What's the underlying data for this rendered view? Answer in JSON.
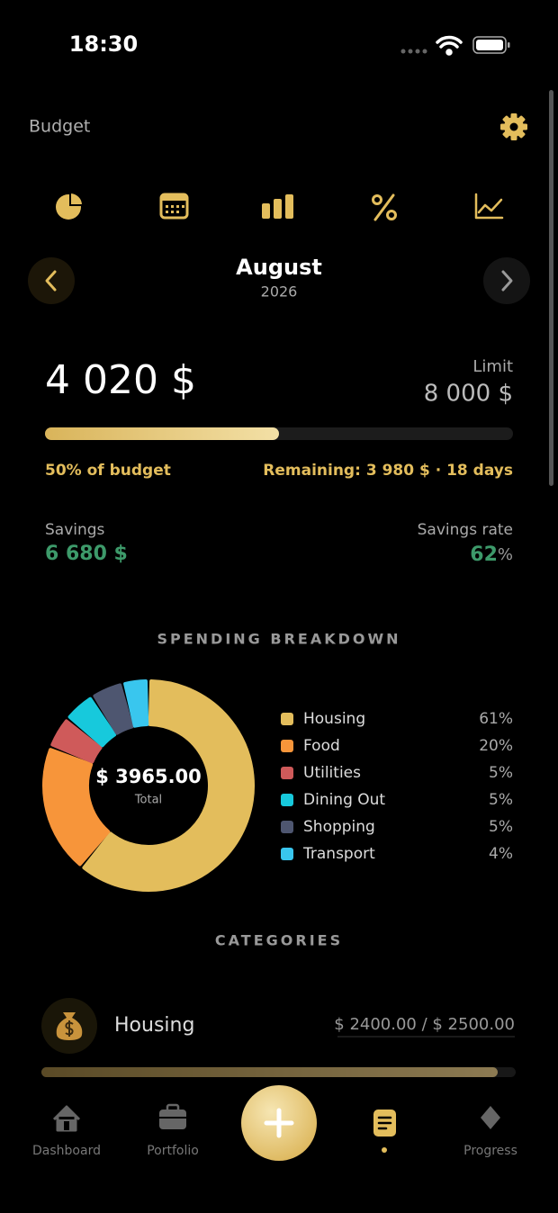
{
  "status_bar": {
    "time": "18:30"
  },
  "header": {
    "title": "Budget"
  },
  "period": {
    "month": "August",
    "year": "2026"
  },
  "budget": {
    "spent": "4 020 $",
    "limit_label": "Limit",
    "limit": "8 000 $",
    "progress": {
      "value": 50,
      "label": "50% of budget"
    },
    "remaining": "Remaining: 3 980 $ · 18 days"
  },
  "savings": {
    "label": "Savings",
    "amount": "6 680 $",
    "rate_label": "Savings rate",
    "rate": "62",
    "rate_unit": "%"
  },
  "breakdown": {
    "title": "SPENDING BREAKDOWN",
    "type": "pie",
    "total": "$ 3965.00",
    "total_label": "Total",
    "categories": [
      "Housing",
      "Food",
      "Utilities",
      "Dining Out",
      "Shopping",
      "Transport"
    ],
    "values": [
      61,
      20,
      5,
      5,
      5,
      4
    ],
    "value_labels": [
      "61%",
      "20%",
      "5%",
      "5%",
      "5%",
      "4%"
    ],
    "colors": [
      "#e3bd5c",
      "#f7953a",
      "#cf5a5a",
      "#17c9dc",
      "#4e5670",
      "#39c6ee"
    ]
  },
  "categories_section": {
    "title": "CATEGORIES",
    "items": [
      {
        "name": "Housing",
        "amount": "$ 2400.00 / $ 2500.00"
      }
    ]
  },
  "nav": {
    "items": [
      "Dashboard",
      "Portfolio",
      "Progress"
    ]
  }
}
